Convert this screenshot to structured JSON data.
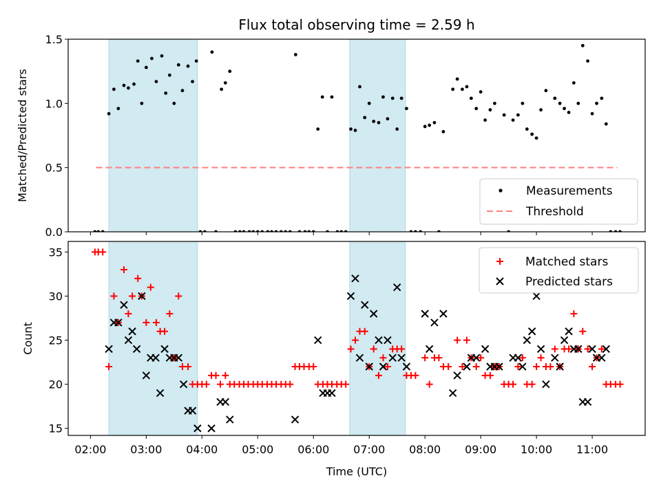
{
  "title": "Flux total observing time = 2.59 h",
  "colors": {
    "measure": "#000000",
    "threshold": "#ff7f7f",
    "shade": "#add8e6",
    "matched": "#ff0000",
    "predicted": "#000000"
  },
  "chart_data": [
    {
      "type": "scatter",
      "ylabel": "Matched/Predicted stars",
      "ylim": [
        0,
        1.5
      ],
      "yticks": [
        "0.0",
        "0.5",
        "1.0",
        "1.5"
      ],
      "xlim": [
        1.6,
        11.95
      ],
      "shaded_intervals_hours": [
        [
          2.33,
          3.92
        ],
        [
          6.65,
          7.65
        ]
      ],
      "legend": [
        "Measurements",
        "Threshold"
      ],
      "legend_position": "lower-right",
      "threshold": {
        "y": 0.5,
        "x_range": [
          2.1,
          11.45
        ]
      },
      "measurements": [
        [
          2.08,
          0
        ],
        [
          2.14,
          0
        ],
        [
          2.22,
          0
        ],
        [
          2.33,
          0.92
        ],
        [
          2.42,
          1.11
        ],
        [
          2.5,
          0.96
        ],
        [
          2.6,
          1.14
        ],
        [
          2.68,
          1.12
        ],
        [
          2.78,
          1.15
        ],
        [
          2.85,
          1.33
        ],
        [
          2.92,
          1.0
        ],
        [
          3.0,
          1.28
        ],
        [
          3.1,
          1.35
        ],
        [
          3.18,
          1.17
        ],
        [
          3.28,
          1.37
        ],
        [
          3.35,
          1.08
        ],
        [
          3.42,
          1.22
        ],
        [
          3.5,
          1.0
        ],
        [
          3.58,
          1.3
        ],
        [
          3.65,
          1.1
        ],
        [
          3.75,
          1.29
        ],
        [
          3.83,
          1.17
        ],
        [
          3.9,
          1.33
        ],
        [
          3.97,
          0
        ],
        [
          4.05,
          0
        ],
        [
          4.18,
          1.4
        ],
        [
          4.25,
          0
        ],
        [
          4.35,
          1.11
        ],
        [
          4.42,
          1.16
        ],
        [
          4.5,
          1.25
        ],
        [
          4.6,
          0
        ],
        [
          4.68,
          0
        ],
        [
          4.75,
          0
        ],
        [
          4.85,
          0
        ],
        [
          4.92,
          0
        ],
        [
          5.0,
          0
        ],
        [
          5.08,
          0
        ],
        [
          5.18,
          0
        ],
        [
          5.25,
          0
        ],
        [
          5.33,
          0
        ],
        [
          5.42,
          0
        ],
        [
          5.5,
          0
        ],
        [
          5.58,
          0
        ],
        [
          5.68,
          1.38
        ],
        [
          5.75,
          0
        ],
        [
          5.85,
          0
        ],
        [
          5.92,
          0
        ],
        [
          6.0,
          0
        ],
        [
          6.08,
          0.8
        ],
        [
          6.16,
          1.05
        ],
        [
          6.25,
          0
        ],
        [
          6.33,
          1.05
        ],
        [
          6.43,
          0
        ],
        [
          6.5,
          0
        ],
        [
          6.58,
          0
        ],
        [
          6.67,
          0.8
        ],
        [
          6.75,
          0.79
        ],
        [
          6.83,
          1.13
        ],
        [
          6.92,
          0.89
        ],
        [
          7.0,
          1.0
        ],
        [
          7.08,
          0.86
        ],
        [
          7.17,
          0.85
        ],
        [
          7.25,
          1.05
        ],
        [
          7.33,
          0.88
        ],
        [
          7.42,
          1.04
        ],
        [
          7.5,
          0.8
        ],
        [
          7.58,
          1.04
        ],
        [
          7.67,
          0.96
        ],
        [
          7.75,
          0
        ],
        [
          7.83,
          0
        ],
        [
          7.92,
          0
        ],
        [
          8.0,
          0.82
        ],
        [
          8.08,
          0.83
        ],
        [
          8.17,
          0.85
        ],
        [
          8.25,
          0
        ],
        [
          8.33,
          0.78
        ],
        [
          8.5,
          1.11
        ],
        [
          8.58,
          1.19
        ],
        [
          8.67,
          1.11
        ],
        [
          8.75,
          1.13
        ],
        [
          8.83,
          1.04
        ],
        [
          8.92,
          0.96
        ],
        [
          9.0,
          1.09
        ],
        [
          9.08,
          0.87
        ],
        [
          9.17,
          0.95
        ],
        [
          9.25,
          1.0
        ],
        [
          9.42,
          0.91
        ],
        [
          9.5,
          0
        ],
        [
          9.58,
          0.87
        ],
        [
          9.67,
          0.91
        ],
        [
          9.75,
          1.0
        ],
        [
          9.83,
          0.8
        ],
        [
          9.92,
          0.76
        ],
        [
          10.0,
          0.73
        ],
        [
          10.08,
          0.95
        ],
        [
          10.17,
          1.1
        ],
        [
          10.33,
          1.04
        ],
        [
          10.42,
          1.0
        ],
        [
          10.5,
          0.96
        ],
        [
          10.58,
          0.93
        ],
        [
          10.67,
          1.16
        ],
        [
          10.75,
          1.0
        ],
        [
          10.83,
          1.45
        ],
        [
          10.92,
          1.33
        ],
        [
          11.0,
          0.92
        ],
        [
          11.08,
          1.0
        ],
        [
          11.17,
          1.04
        ],
        [
          11.25,
          0.84
        ],
        [
          11.33,
          0
        ],
        [
          11.42,
          0
        ],
        [
          11.5,
          0
        ]
      ]
    },
    {
      "type": "scatter",
      "ylabel": "Count",
      "xlabel": "Time (UTC)",
      "ylim": [
        14.2,
        36.2
      ],
      "yticks": [
        15,
        20,
        25,
        30,
        35
      ],
      "xlim": [
        1.6,
        11.95
      ],
      "xticks": [
        "02:00",
        "03:00",
        "04:00",
        "05:00",
        "06:00",
        "07:00",
        "08:00",
        "09:00",
        "10:00",
        "11:00"
      ],
      "shaded_intervals_hours": [
        [
          2.33,
          3.92
        ],
        [
          6.65,
          7.65
        ]
      ],
      "legend": [
        "Matched stars",
        "Predicted stars"
      ],
      "legend_position": "upper-right",
      "matched": [
        [
          2.08,
          35
        ],
        [
          2.14,
          35
        ],
        [
          2.22,
          35
        ],
        [
          2.33,
          22
        ],
        [
          2.42,
          30
        ],
        [
          2.5,
          27
        ],
        [
          2.6,
          33
        ],
        [
          2.68,
          28
        ],
        [
          2.75,
          30
        ],
        [
          2.85,
          32
        ],
        [
          2.92,
          30
        ],
        [
          3.0,
          27
        ],
        [
          3.08,
          31
        ],
        [
          3.18,
          27
        ],
        [
          3.25,
          26
        ],
        [
          3.33,
          26
        ],
        [
          3.42,
          28
        ],
        [
          3.5,
          23
        ],
        [
          3.58,
          30
        ],
        [
          3.65,
          22
        ],
        [
          3.75,
          22
        ],
        [
          3.83,
          20
        ],
        [
          3.92,
          20
        ],
        [
          4.0,
          20
        ],
        [
          4.08,
          20
        ],
        [
          4.17,
          21
        ],
        [
          4.25,
          21
        ],
        [
          4.33,
          20
        ],
        [
          4.42,
          21
        ],
        [
          4.5,
          20
        ],
        [
          4.58,
          20
        ],
        [
          4.67,
          20
        ],
        [
          4.75,
          20
        ],
        [
          4.83,
          20
        ],
        [
          4.92,
          20
        ],
        [
          5.0,
          20
        ],
        [
          5.08,
          20
        ],
        [
          5.17,
          20
        ],
        [
          5.25,
          20
        ],
        [
          5.33,
          20
        ],
        [
          5.42,
          20
        ],
        [
          5.5,
          20
        ],
        [
          5.58,
          20
        ],
        [
          5.67,
          22
        ],
        [
          5.75,
          22
        ],
        [
          5.83,
          22
        ],
        [
          5.92,
          22
        ],
        [
          6.0,
          22
        ],
        [
          6.08,
          20
        ],
        [
          6.17,
          20
        ],
        [
          6.25,
          20
        ],
        [
          6.33,
          20
        ],
        [
          6.42,
          20
        ],
        [
          6.5,
          20
        ],
        [
          6.58,
          20
        ],
        [
          6.67,
          24
        ],
        [
          6.75,
          25
        ],
        [
          6.83,
          26
        ],
        [
          6.92,
          26
        ],
        [
          7.0,
          22
        ],
        [
          7.08,
          24
        ],
        [
          7.17,
          21
        ],
        [
          7.25,
          23
        ],
        [
          7.33,
          22
        ],
        [
          7.42,
          24
        ],
        [
          7.5,
          24
        ],
        [
          7.58,
          24
        ],
        [
          7.67,
          21
        ],
        [
          7.75,
          21
        ],
        [
          7.83,
          21
        ],
        [
          8.0,
          23
        ],
        [
          8.08,
          20
        ],
        [
          8.17,
          23
        ],
        [
          8.25,
          23
        ],
        [
          8.33,
          22
        ],
        [
          8.42,
          22
        ],
        [
          8.58,
          25
        ],
        [
          8.67,
          22
        ],
        [
          8.75,
          25
        ],
        [
          8.83,
          23
        ],
        [
          8.92,
          22
        ],
        [
          9.0,
          23
        ],
        [
          9.08,
          21
        ],
        [
          9.17,
          21
        ],
        [
          9.25,
          22
        ],
        [
          9.33,
          22
        ],
        [
          9.42,
          20
        ],
        [
          9.5,
          20
        ],
        [
          9.58,
          20
        ],
        [
          9.67,
          22
        ],
        [
          9.75,
          23
        ],
        [
          9.83,
          20
        ],
        [
          9.92,
          20
        ],
        [
          10.0,
          22
        ],
        [
          10.08,
          23
        ],
        [
          10.17,
          22
        ],
        [
          10.25,
          22
        ],
        [
          10.33,
          24
        ],
        [
          10.42,
          22
        ],
        [
          10.5,
          24
        ],
        [
          10.58,
          24
        ],
        [
          10.67,
          28
        ],
        [
          10.75,
          24
        ],
        [
          10.83,
          26
        ],
        [
          10.92,
          24
        ],
        [
          11.0,
          22
        ],
        [
          11.08,
          23
        ],
        [
          11.17,
          24
        ],
        [
          11.25,
          20
        ],
        [
          11.33,
          20
        ],
        [
          11.42,
          20
        ],
        [
          11.5,
          20
        ]
      ],
      "predicted": [
        [
          2.33,
          24
        ],
        [
          2.42,
          27
        ],
        [
          2.5,
          27
        ],
        [
          2.6,
          29
        ],
        [
          2.68,
          25
        ],
        [
          2.75,
          26
        ],
        [
          2.83,
          24
        ],
        [
          2.92,
          30
        ],
        [
          3.0,
          21
        ],
        [
          3.08,
          23
        ],
        [
          3.17,
          23
        ],
        [
          3.25,
          19
        ],
        [
          3.33,
          24
        ],
        [
          3.42,
          23
        ],
        [
          3.5,
          23
        ],
        [
          3.58,
          23
        ],
        [
          3.67,
          20
        ],
        [
          3.75,
          17
        ],
        [
          3.83,
          17
        ],
        [
          3.92,
          15
        ],
        [
          4.17,
          15
        ],
        [
          4.33,
          18
        ],
        [
          4.42,
          18
        ],
        [
          4.5,
          16
        ],
        [
          5.67,
          16
        ],
        [
          6.08,
          25
        ],
        [
          6.17,
          19
        ],
        [
          6.25,
          19
        ],
        [
          6.33,
          19
        ],
        [
          6.67,
          30
        ],
        [
          6.75,
          32
        ],
        [
          6.83,
          23
        ],
        [
          6.92,
          29
        ],
        [
          7.0,
          22
        ],
        [
          7.08,
          28
        ],
        [
          7.17,
          25
        ],
        [
          7.25,
          22
        ],
        [
          7.33,
          25
        ],
        [
          7.42,
          23
        ],
        [
          7.5,
          31
        ],
        [
          7.58,
          23
        ],
        [
          7.67,
          22
        ],
        [
          8.0,
          28
        ],
        [
          8.08,
          24
        ],
        [
          8.17,
          27
        ],
        [
          8.33,
          28
        ],
        [
          8.5,
          19
        ],
        [
          8.58,
          21
        ],
        [
          8.75,
          22
        ],
        [
          8.83,
          23
        ],
        [
          8.92,
          23
        ],
        [
          9.08,
          24
        ],
        [
          9.17,
          22
        ],
        [
          9.25,
          22
        ],
        [
          9.33,
          22
        ],
        [
          9.58,
          23
        ],
        [
          9.67,
          23
        ],
        [
          9.75,
          22
        ],
        [
          9.83,
          25
        ],
        [
          9.92,
          26
        ],
        [
          10.0,
          30
        ],
        [
          10.08,
          24
        ],
        [
          10.17,
          20
        ],
        [
          10.33,
          23
        ],
        [
          10.42,
          22
        ],
        [
          10.5,
          25
        ],
        [
          10.58,
          26
        ],
        [
          10.67,
          24
        ],
        [
          10.75,
          24
        ],
        [
          10.83,
          18
        ],
        [
          10.92,
          18
        ],
        [
          11.0,
          24
        ],
        [
          11.08,
          23
        ],
        [
          11.17,
          23
        ],
        [
          11.25,
          24
        ]
      ]
    }
  ]
}
